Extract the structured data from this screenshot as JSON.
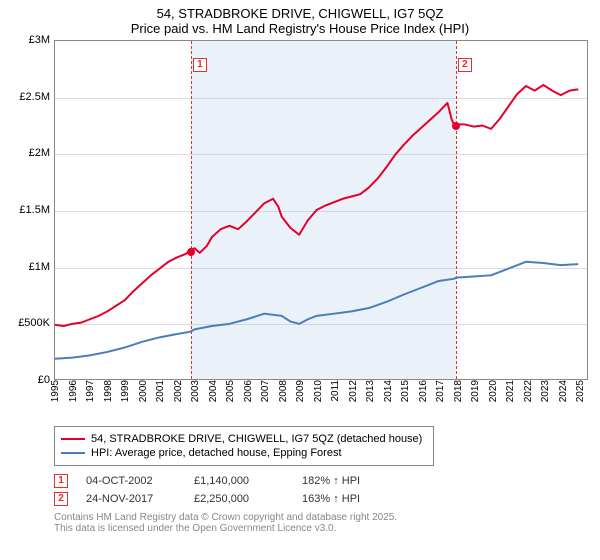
{
  "title_line1": "54, STRADBROKE DRIVE, CHIGWELL, IG7 5QZ",
  "title_line2": "Price paid vs. HM Land Registry's House Price Index (HPI)",
  "chart": {
    "type": "line",
    "background_color": "#ffffff",
    "grid_color": "#dddddd",
    "border_color": "#888888",
    "x_years": [
      1995,
      1996,
      1997,
      1998,
      1999,
      2000,
      2001,
      2002,
      2003,
      2004,
      2005,
      2006,
      2007,
      2008,
      2009,
      2010,
      2011,
      2012,
      2013,
      2014,
      2015,
      2016,
      2017,
      2018,
      2019,
      2020,
      2021,
      2022,
      2023,
      2024,
      2025
    ],
    "xlim": [
      1995,
      2025.5
    ],
    "ylim": [
      0,
      3000000
    ],
    "ytick_step": 500000,
    "ytick_labels": [
      "£0",
      "£500K",
      "£1M",
      "£1.5M",
      "£2M",
      "£2.5M",
      "£3M"
    ],
    "shade": {
      "start": 2002.76,
      "end": 2017.9,
      "color": "rgba(173,200,230,0.25)"
    },
    "events": [
      {
        "num": "1",
        "x": 2002.76,
        "flag_y": 2850000
      },
      {
        "num": "2",
        "x": 2017.9,
        "flag_y": 2850000
      }
    ],
    "series": [
      {
        "name": "price_paid",
        "label": "54, STRADBROKE DRIVE, CHIGWELL, IG7 5QZ (detached house)",
        "color": "#e4002b",
        "line_width": 2,
        "points": [
          [
            1995,
            480000
          ],
          [
            1995.5,
            470000
          ],
          [
            1996,
            490000
          ],
          [
            1996.5,
            500000
          ],
          [
            1997,
            530000
          ],
          [
            1997.5,
            560000
          ],
          [
            1998,
            600000
          ],
          [
            1998.5,
            650000
          ],
          [
            1999,
            700000
          ],
          [
            1999.5,
            780000
          ],
          [
            2000,
            850000
          ],
          [
            2000.5,
            920000
          ],
          [
            2001,
            980000
          ],
          [
            2001.5,
            1040000
          ],
          [
            2002,
            1080000
          ],
          [
            2002.5,
            1110000
          ],
          [
            2002.76,
            1140000
          ],
          [
            2003,
            1160000
          ],
          [
            2003.3,
            1120000
          ],
          [
            2003.7,
            1180000
          ],
          [
            2004,
            1260000
          ],
          [
            2004.5,
            1330000
          ],
          [
            2005,
            1360000
          ],
          [
            2005.5,
            1330000
          ],
          [
            2006,
            1400000
          ],
          [
            2006.5,
            1480000
          ],
          [
            2007,
            1560000
          ],
          [
            2007.5,
            1600000
          ],
          [
            2007.8,
            1530000
          ],
          [
            2008,
            1440000
          ],
          [
            2008.5,
            1340000
          ],
          [
            2009,
            1280000
          ],
          [
            2009.5,
            1410000
          ],
          [
            2010,
            1500000
          ],
          [
            2010.5,
            1540000
          ],
          [
            2011,
            1570000
          ],
          [
            2011.5,
            1600000
          ],
          [
            2012,
            1620000
          ],
          [
            2012.5,
            1640000
          ],
          [
            2013,
            1700000
          ],
          [
            2013.5,
            1780000
          ],
          [
            2014,
            1880000
          ],
          [
            2014.5,
            1990000
          ],
          [
            2015,
            2080000
          ],
          [
            2015.5,
            2160000
          ],
          [
            2016,
            2230000
          ],
          [
            2016.5,
            2300000
          ],
          [
            2017,
            2370000
          ],
          [
            2017.5,
            2450000
          ],
          [
            2017.75,
            2300000
          ],
          [
            2017.9,
            2250000
          ],
          [
            2018,
            2260000
          ],
          [
            2018.5,
            2260000
          ],
          [
            2019,
            2240000
          ],
          [
            2019.5,
            2250000
          ],
          [
            2020,
            2220000
          ],
          [
            2020.5,
            2310000
          ],
          [
            2021,
            2420000
          ],
          [
            2021.5,
            2530000
          ],
          [
            2022,
            2600000
          ],
          [
            2022.5,
            2560000
          ],
          [
            2023,
            2610000
          ],
          [
            2023.5,
            2560000
          ],
          [
            2024,
            2520000
          ],
          [
            2024.5,
            2560000
          ],
          [
            2025,
            2570000
          ]
        ]
      },
      {
        "name": "hpi",
        "label": "HPI: Average price, detached house, Epping Forest",
        "color": "#4a7ebb",
        "line_width": 2,
        "points": [
          [
            1995,
            180000
          ],
          [
            1996,
            190000
          ],
          [
            1997,
            210000
          ],
          [
            1998,
            240000
          ],
          [
            1999,
            280000
          ],
          [
            2000,
            330000
          ],
          [
            2001,
            370000
          ],
          [
            2002,
            400000
          ],
          [
            2002.76,
            420000
          ],
          [
            2003,
            440000
          ],
          [
            2004,
            470000
          ],
          [
            2005,
            490000
          ],
          [
            2006,
            530000
          ],
          [
            2007,
            580000
          ],
          [
            2008,
            560000
          ],
          [
            2008.5,
            510000
          ],
          [
            2009,
            490000
          ],
          [
            2009.5,
            530000
          ],
          [
            2010,
            560000
          ],
          [
            2011,
            580000
          ],
          [
            2012,
            600000
          ],
          [
            2013,
            630000
          ],
          [
            2014,
            685000
          ],
          [
            2015,
            750000
          ],
          [
            2016,
            810000
          ],
          [
            2017,
            870000
          ],
          [
            2017.9,
            890000
          ],
          [
            2018,
            900000
          ],
          [
            2019,
            910000
          ],
          [
            2020,
            920000
          ],
          [
            2021,
            980000
          ],
          [
            2022,
            1040000
          ],
          [
            2023,
            1030000
          ],
          [
            2024,
            1010000
          ],
          [
            2025,
            1020000
          ]
        ]
      }
    ],
    "markers": [
      {
        "x": 2002.76,
        "y": 1140000,
        "color": "#e4002b"
      },
      {
        "x": 2017.9,
        "y": 2250000,
        "color": "#e4002b"
      }
    ]
  },
  "legend": [
    {
      "color": "#e4002b",
      "text": "54, STRADBROKE DRIVE, CHIGWELL, IG7 5QZ (detached house)"
    },
    {
      "color": "#4a7ebb",
      "text": "HPI: Average price, detached house, Epping Forest"
    }
  ],
  "trades": [
    {
      "num": "1",
      "date": "04-OCT-2002",
      "price": "£1,140,000",
      "pct": "182% ↑ HPI"
    },
    {
      "num": "2",
      "date": "24-NOV-2017",
      "price": "£2,250,000",
      "pct": "163% ↑ HPI"
    }
  ],
  "footer_line1": "Contains HM Land Registry data © Crown copyright and database right 2025.",
  "footer_line2": "This data is licensed under the Open Government Licence v3.0."
}
